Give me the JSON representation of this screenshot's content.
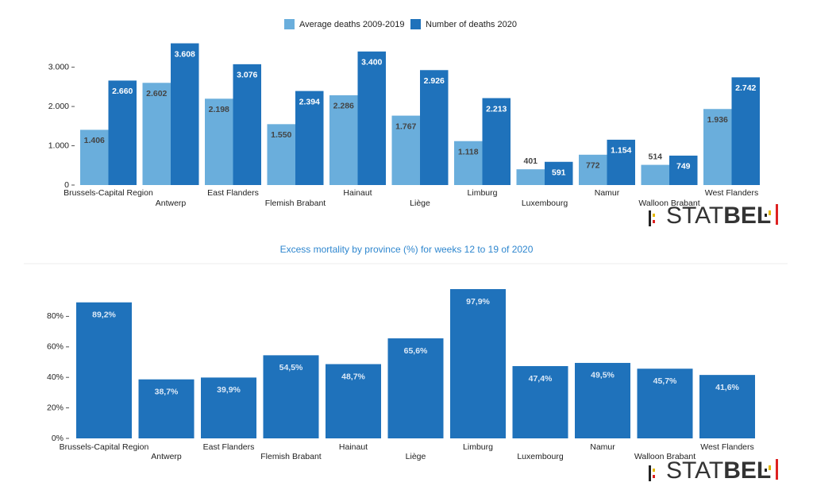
{
  "chart_data": [
    {
      "type": "bar",
      "categories": [
        "Brussels-Capital Region",
        "Antwerp",
        "East Flanders",
        "Flemish Brabant",
        "Hainaut",
        "Liège",
        "Limburg",
        "Luxembourg",
        "Namur",
        "Walloon Brabant",
        "West Flanders"
      ],
      "series": [
        {
          "name": "Average deaths 2009-2019",
          "color": "#6aaedc",
          "values": [
            1406,
            2602,
            2198,
            1550,
            2286,
            1767,
            1118,
            401,
            772,
            514,
            1936
          ],
          "value_labels": [
            "1.406",
            "2.602",
            "2.198",
            "1.550",
            "2.286",
            "1.767",
            "1.118",
            "401",
            "772",
            "514",
            "1.936"
          ]
        },
        {
          "name": "Number of deaths 2020",
          "color": "#1f72bb",
          "values": [
            2660,
            3608,
            3076,
            2394,
            3400,
            2926,
            2213,
            591,
            1154,
            749,
            2742
          ],
          "value_labels": [
            "2.660",
            "3.608",
            "3.076",
            "2.394",
            "3.400",
            "2.926",
            "2.213",
            "591",
            "1.154",
            "749",
            "2.742"
          ]
        }
      ],
      "ylim": [
        0,
        3700
      ],
      "yticks": [
        0,
        {
          "value": 1000,
          "label": "1.000"
        },
        {
          "value": 2000,
          "label": "2.000"
        },
        {
          "value": 3000,
          "label": "3.000"
        }
      ],
      "legend": "top"
    },
    {
      "type": "bar",
      "title": "Excess mortality by province (%) for weeks 12 to 19 of 2020",
      "categories": [
        "Brussels-Capital Region",
        "Antwerp",
        "East Flanders",
        "Flemish Brabant",
        "Hainaut",
        "Liège",
        "Limburg",
        "Luxembourg",
        "Namur",
        "Walloon Brabant",
        "West Flanders"
      ],
      "values": [
        89.2,
        38.7,
        39.9,
        54.5,
        48.7,
        65.6,
        97.9,
        47.4,
        49.5,
        45.7,
        41.6
      ],
      "value_labels": [
        "89,2%",
        "38,7%",
        "39,9%",
        "54,5%",
        "48,7%",
        "65,6%",
        "97,9%",
        "47,4%",
        "49,5%",
        "45,7%",
        "41,6%"
      ],
      "color": "#1f72bb",
      "ylim": [
        0,
        100
      ],
      "yticks": [
        {
          "value": 0,
          "label": "0%"
        },
        {
          "value": 20,
          "label": "20%"
        },
        {
          "value": 40,
          "label": "40%"
        },
        {
          "value": 60,
          "label": "60%"
        },
        {
          "value": 80,
          "label": "80%"
        }
      ]
    }
  ],
  "logo": {
    "light": "STAT",
    "bold": "BEL"
  }
}
